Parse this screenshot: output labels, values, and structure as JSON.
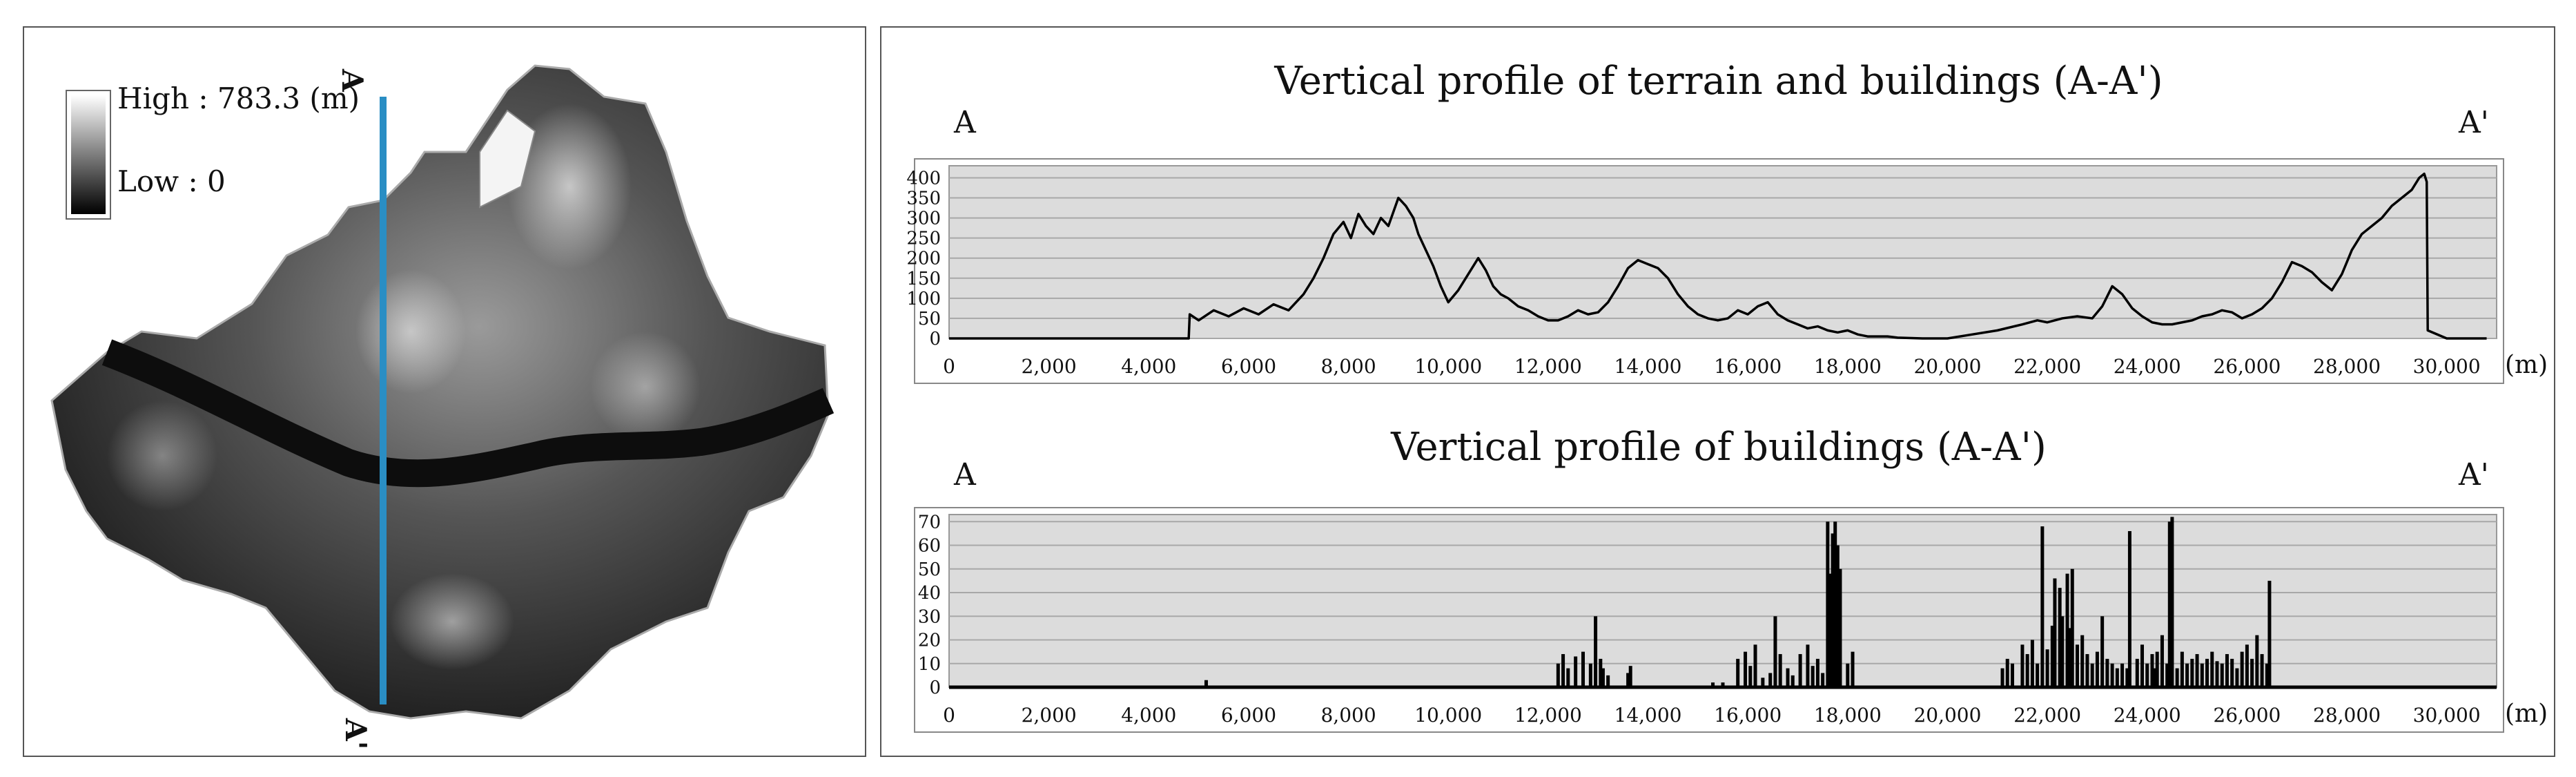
{
  "map": {
    "legend_high": "High : 783.3 (m)",
    "legend_low": "Low : 0",
    "label_a": "A",
    "label_a_prime": "A'",
    "line_color": "#2a8ec4"
  },
  "chart_data": [
    {
      "type": "line",
      "title": "Vertical profile of terrain and buildings (A-A')",
      "start_label": "A",
      "end_label": "A'",
      "xlabel": "(m)",
      "xlim": [
        0,
        31000
      ],
      "ylim": [
        0,
        430
      ],
      "x_ticks": [
        0,
        2000,
        4000,
        6000,
        8000,
        10000,
        12000,
        14000,
        16000,
        18000,
        20000,
        22000,
        24000,
        26000,
        28000,
        30000
      ],
      "x_tick_labels": [
        "0",
        "2,000",
        "4,000",
        "6,000",
        "8,000",
        "10,000",
        "12,000",
        "14,000",
        "16,000",
        "18,000",
        "20,000",
        "22,000",
        "24,000",
        "26,000",
        "28,000",
        "30,000"
      ],
      "y_ticks": [
        0,
        50,
        100,
        150,
        200,
        250,
        300,
        350,
        400
      ],
      "y_tick_labels": [
        "0",
        "50",
        "100",
        "150",
        "200",
        "250",
        "300",
        "350",
        "400"
      ],
      "grid": true,
      "series": [
        {
          "x": [
            0,
            4800,
            4820,
            5000,
            5300,
            5600,
            5900,
            6200,
            6500,
            6800,
            7100,
            7300,
            7500,
            7700,
            7900,
            8050,
            8200,
            8350,
            8500,
            8650,
            8800,
            9000,
            9150,
            9300,
            9400,
            9550,
            9700,
            9850,
            10000,
            10200,
            10400,
            10600,
            10750,
            10900,
            11050,
            11200,
            11400,
            11600,
            11800,
            12000,
            12200,
            12400,
            12600,
            12800,
            13000,
            13200,
            13400,
            13600,
            13800,
            14000,
            14200,
            14400,
            14600,
            14800,
            15000,
            15200,
            15400,
            15600,
            15800,
            16000,
            16200,
            16400,
            16600,
            16800,
            17000,
            17200,
            17400,
            17600,
            17800,
            18000,
            18200,
            18400,
            18600,
            18800,
            19000,
            19500,
            20000,
            20500,
            21000,
            21500,
            21800,
            22000,
            22300,
            22600,
            22900,
            23100,
            23300,
            23500,
            23700,
            23900,
            24100,
            24300,
            24500,
            24700,
            24900,
            25100,
            25300,
            25500,
            25700,
            25900,
            26100,
            26300,
            26500,
            26700,
            26900,
            27100,
            27300,
            27500,
            27700,
            27900,
            28100,
            28300,
            28500,
            28700,
            28900,
            29100,
            29300,
            29450,
            29550,
            29600,
            29620,
            30000,
            30800
          ],
          "y": [
            0,
            0,
            60,
            45,
            70,
            55,
            75,
            60,
            85,
            70,
            110,
            150,
            200,
            260,
            290,
            250,
            310,
            280,
            260,
            300,
            280,
            350,
            330,
            300,
            260,
            220,
            180,
            130,
            90,
            120,
            160,
            200,
            170,
            130,
            110,
            100,
            80,
            70,
            55,
            45,
            45,
            55,
            70,
            60,
            65,
            90,
            130,
            175,
            195,
            185,
            175,
            150,
            110,
            80,
            60,
            50,
            45,
            50,
            70,
            60,
            80,
            90,
            60,
            45,
            35,
            25,
            30,
            20,
            15,
            20,
            10,
            5,
            5,
            5,
            2,
            0,
            0,
            10,
            20,
            35,
            45,
            40,
            50,
            55,
            50,
            80,
            130,
            110,
            75,
            55,
            40,
            35,
            35,
            40,
            45,
            55,
            60,
            70,
            65,
            50,
            60,
            75,
            100,
            140,
            190,
            180,
            165,
            140,
            120,
            160,
            220,
            260,
            280,
            300,
            330,
            350,
            370,
            400,
            410,
            390,
            20,
            0,
            0
          ]
        }
      ]
    },
    {
      "type": "bar",
      "title": "Vertical profile of  buildings (A-A')",
      "start_label": "A",
      "end_label": "A'",
      "xlabel": "(m)",
      "xlim": [
        0,
        31000
      ],
      "ylim": [
        0,
        73
      ],
      "x_ticks": [
        0,
        2000,
        4000,
        6000,
        8000,
        10000,
        12000,
        14000,
        16000,
        18000,
        20000,
        22000,
        24000,
        26000,
        28000,
        30000
      ],
      "x_tick_labels": [
        "0",
        "2,000",
        "4,000",
        "6,000",
        "8,000",
        "10,000",
        "12,000",
        "14,000",
        "16,000",
        "18,000",
        "20,000",
        "22,000",
        "24,000",
        "26,000",
        "28,000",
        "30,000"
      ],
      "y_ticks": [
        0,
        10,
        20,
        30,
        40,
        50,
        60,
        70
      ],
      "y_tick_labels": [
        "0",
        "10",
        "20",
        "30",
        "40",
        "50",
        "60",
        "70"
      ],
      "grid": true,
      "x": [
        5150,
        12200,
        12300,
        12400,
        12550,
        12700,
        12850,
        12950,
        13050,
        13100,
        13200,
        13600,
        13650,
        15300,
        15500,
        15800,
        15950,
        16050,
        16150,
        16300,
        16450,
        16550,
        16650,
        16800,
        16900,
        17050,
        17200,
        17300,
        17400,
        17500,
        17600,
        17650,
        17700,
        17750,
        17800,
        17850,
        18000,
        18100,
        21100,
        21200,
        21300,
        21500,
        21600,
        21700,
        21800,
        21900,
        22000,
        22100,
        22150,
        22250,
        22300,
        22400,
        22450,
        22500,
        22600,
        22700,
        22800,
        22900,
        23000,
        23100,
        23200,
        23300,
        23400,
        23500,
        23600,
        23650,
        23800,
        23900,
        24000,
        24100,
        24150,
        24200,
        24300,
        24400,
        24450,
        24500,
        24600,
        24700,
        24800,
        24900,
        25000,
        25100,
        25200,
        25300,
        25400,
        25500,
        25600,
        25700,
        25800,
        25900,
        26000,
        26100,
        26200,
        26300,
        26400,
        26450
      ],
      "values": [
        3,
        10,
        14,
        8,
        13,
        15,
        10,
        30,
        12,
        8,
        5,
        6,
        9,
        2,
        2,
        12,
        15,
        9,
        18,
        4,
        6,
        30,
        14,
        8,
        5,
        14,
        18,
        9,
        12,
        6,
        70,
        48,
        65,
        70,
        60,
        50,
        10,
        15,
        8,
        12,
        10,
        18,
        14,
        20,
        10,
        68,
        16,
        26,
        46,
        42,
        30,
        48,
        25,
        50,
        18,
        22,
        14,
        10,
        15,
        30,
        12,
        10,
        8,
        10,
        8,
        66,
        12,
        18,
        10,
        14,
        8,
        15,
        22,
        10,
        70,
        72,
        8,
        15,
        10,
        12,
        14,
        10,
        12,
        15,
        11,
        10,
        14,
        12,
        8,
        15,
        18,
        12,
        22,
        14,
        10,
        45
      ]
    }
  ]
}
